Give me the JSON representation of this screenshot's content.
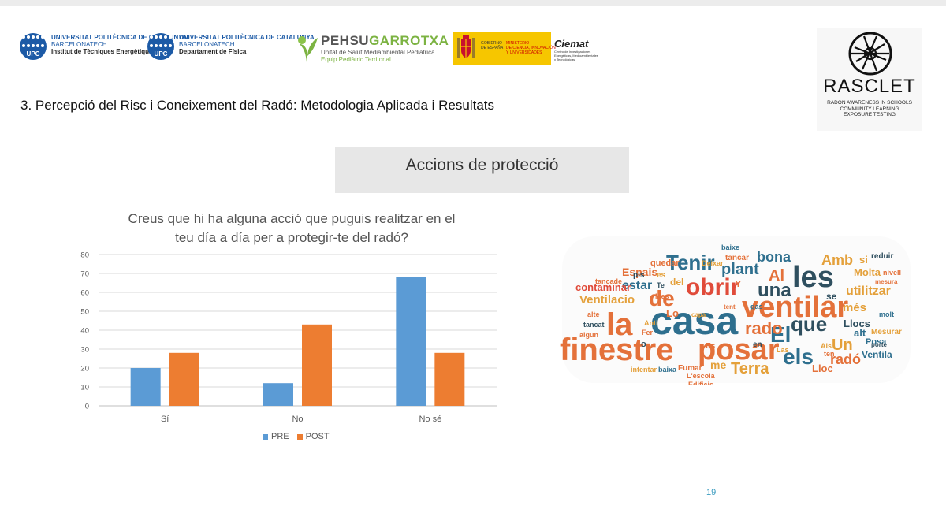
{
  "logos": {
    "upc1": {
      "mark": "UPC",
      "line1": "UNIVERSITAT POLITÈCNICA DE CATALUNYA",
      "line2": "BARCELONATECH",
      "line3": "Institut de Tècniques Energètiques"
    },
    "upc2": {
      "mark": "UPC",
      "line1": "UNIVERSITAT POLITÈCNICA DE CATALUNYA",
      "line2": "BARCELONATECH",
      "line3": "Departament de Física"
    },
    "pehsu": {
      "title_a": "PEHSU",
      "title_b": "GARROTXA",
      "sub1": "Unitat de Salut Mediambiental Pediàtrica",
      "sub2": "Equip Pediàtric Territorial"
    },
    "gobierno": {
      "left": "GOBIERNO\nDE ESPAÑA",
      "right": "MINISTERIO\nDE CIENCIA, INNOVACIÓN\nY UNIVERSIDADES"
    },
    "ciemat": {
      "name": "Ciemat",
      "sub": "Centro de Investigaciones Energéticas, Medioambientales y Tecnológicas"
    },
    "rasclet": {
      "name": "RASCLET",
      "tag1": "RADON AWARENESS IN SCHOOLS",
      "tag2": "COMMUNITY LEARNING",
      "tag3": "EXPOSURE TESTING"
    }
  },
  "slide": {
    "title": "3. Percepció del Risc i Coneixement del Radó: Metodologia Aplicada i Resultats",
    "section": "Accions de protecció",
    "page_number": "19"
  },
  "chart_data": {
    "type": "bar",
    "title_line1": "Creus que hi ha alguna acció que puguis realitzar en el",
    "title_line2": "teu día a día per a protegir-te del radó?",
    "categories": [
      "Sí",
      "No",
      "No sé"
    ],
    "series": [
      {
        "name": "PRE",
        "color": "#5b9bd5",
        "values": [
          20,
          12,
          68
        ]
      },
      {
        "name": "POST",
        "color": "#ed7d31",
        "values": [
          28,
          43,
          28
        ]
      }
    ],
    "ylim": [
      0,
      80
    ],
    "yticks": [
      0,
      10,
      20,
      30,
      40,
      50,
      60,
      70,
      80
    ],
    "grid": true,
    "legend": "bottom"
  },
  "word_cloud": {
    "words": [
      {
        "text": "casa",
        "color": "#2e6f8e"
      },
      {
        "text": "finestre",
        "color": "#e4713a"
      },
      {
        "text": "ventilar",
        "color": "#e4713a"
      },
      {
        "text": "posar",
        "color": "#e4713a"
      },
      {
        "text": "la",
        "color": "#e4713a"
      },
      {
        "text": "les",
        "color": "#2f4f5f"
      },
      {
        "text": "obrir",
        "color": "#e04b3a"
      },
      {
        "text": "Tenir",
        "color": "#2e6f8e"
      },
      {
        "text": "de",
        "color": "#e4713a"
      },
      {
        "text": "una",
        "color": "#2f4f5f"
      },
      {
        "text": "els",
        "color": "#2e6f8e"
      },
      {
        "text": "que",
        "color": "#2f4f5f"
      },
      {
        "text": "El",
        "color": "#2e6f8e"
      },
      {
        "text": "Un",
        "color": "#e4a03a"
      },
      {
        "text": "rado",
        "color": "#e4713a"
      },
      {
        "text": "Terra",
        "color": "#e4a03a"
      },
      {
        "text": "plant",
        "color": "#2e6f8e"
      },
      {
        "text": "bona",
        "color": "#2e6f8e"
      },
      {
        "text": "Al",
        "color": "#e4713a"
      },
      {
        "text": "Amb",
        "color": "#e4a03a"
      },
      {
        "text": "radó",
        "color": "#e4713a"
      },
      {
        "text": "utilitzar",
        "color": "#e4a03a"
      },
      {
        "text": "Ventilacio",
        "color": "#e4a03a"
      },
      {
        "text": "Llocs",
        "color": "#2f4f5f"
      },
      {
        "text": "més",
        "color": "#e4a03a"
      },
      {
        "text": "Molta",
        "color": "#e4a03a"
      },
      {
        "text": "estar",
        "color": "#2e6f8e"
      },
      {
        "text": "Espais",
        "color": "#e4713a"
      },
      {
        "text": "contaminar",
        "color": "#e04b3a"
      },
      {
        "text": "alt",
        "color": "#2e6f8e"
      },
      {
        "text": "me",
        "color": "#e4a03a"
      },
      {
        "text": "Lloc",
        "color": "#e4713a"
      },
      {
        "text": "se",
        "color": "#2f4f5f"
      },
      {
        "text": "del",
        "color": "#e4a03a"
      },
      {
        "text": "Ventila",
        "color": "#2e6f8e"
      },
      {
        "text": "Posa",
        "color": "#2e6f8e"
      },
      {
        "text": "en",
        "color": "#2f4f5f"
      },
      {
        "text": "Lo",
        "color": "#e4713a"
      },
      {
        "text": "quedar",
        "color": "#e4713a"
      },
      {
        "text": "Fumar",
        "color": "#e4713a"
      },
      {
        "text": "tancar",
        "color": "#e4713a"
      },
      {
        "text": "baixe",
        "color": "#2e6f8e"
      },
      {
        "text": "si",
        "color": "#e4a03a"
      },
      {
        "text": "reduir",
        "color": "#2f4f5f"
      },
      {
        "text": "Mesurar",
        "color": "#e4a03a"
      },
      {
        "text": "porte",
        "color": "#2f4f5f"
      },
      {
        "text": "nivell",
        "color": "#e4713a"
      },
      {
        "text": "mesura",
        "color": "#e4713a"
      },
      {
        "text": "tancat",
        "color": "#2f4f5f"
      },
      {
        "text": "algun",
        "color": "#e4713a"
      },
      {
        "text": "tancade",
        "color": "#e4713a"
      },
      {
        "text": "intentar",
        "color": "#e4a03a"
      },
      {
        "text": "baixa",
        "color": "#2e6f8e"
      },
      {
        "text": "Deixar",
        "color": "#e4a03a"
      },
      {
        "text": "L'escola",
        "color": "#e4713a"
      },
      {
        "text": "Edificis",
        "color": "#e4713a"
      },
      {
        "text": "Es",
        "color": "#e4713a"
      },
      {
        "text": "es",
        "color": "#e4a03a"
      },
      {
        "text": "Te",
        "color": "#2f4f5f"
      },
      {
        "text": "Mes",
        "color": "#e4713a"
      },
      {
        "text": "pis",
        "color": "#2f4f5f"
      },
      {
        "text": "alte",
        "color": "#e4713a"
      },
      {
        "text": "ten",
        "color": "#e4713a"
      },
      {
        "text": "molt",
        "color": "#2e6f8e"
      },
      {
        "text": "Las",
        "color": "#e4a03a"
      },
      {
        "text": "Als",
        "color": "#e4a03a"
      },
      {
        "text": "capa",
        "color": "#e4a03a"
      },
      {
        "text": "gas",
        "color": "#2e6f8e"
      },
      {
        "text": "tent",
        "color": "#e4713a"
      },
      {
        "text": "Y",
        "color": "#e4713a"
      },
      {
        "text": "o",
        "color": "#2f4f5f"
      },
      {
        "text": "Anti",
        "color": "#e4a03a"
      },
      {
        "text": "Fer",
        "color": "#e4713a"
      }
    ]
  }
}
